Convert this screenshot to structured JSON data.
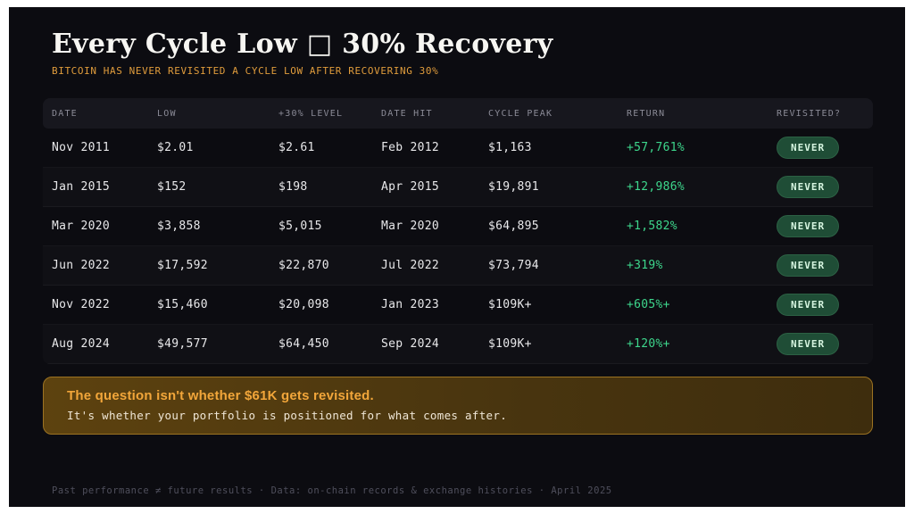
{
  "header": {
    "title": "Every Cycle Low □ 30% Recovery",
    "subtitle": "BITCOIN HAS NEVER REVISITED A CYCLE LOW AFTER RECOVERING 30%"
  },
  "chart_data": {
    "type": "table",
    "title": "Every Cycle Low □ 30% Recovery",
    "subtitle": "BITCOIN HAS NEVER REVISITED A CYCLE LOW AFTER RECOVERING 30%",
    "columns": [
      "DATE",
      "LOW",
      "+30% LEVEL",
      "DATE HIT",
      "CYCLE PEAK",
      "RETURN",
      "REVISITED?"
    ],
    "rows": [
      [
        "Nov 2011",
        "$2.01",
        "$2.61",
        "Feb 2012",
        "$1,163",
        "+57,761%",
        "NEVER"
      ],
      [
        "Jan 2015",
        "$152",
        "$198",
        "Apr 2015",
        "$19,891",
        "+12,986%",
        "NEVER"
      ],
      [
        "Mar 2020",
        "$3,858",
        "$5,015",
        "Mar 2020",
        "$64,895",
        "+1,582%",
        "NEVER"
      ],
      [
        "Jun 2022",
        "$17,592",
        "$22,870",
        "Jul 2022",
        "$73,794",
        "+319%",
        "NEVER"
      ],
      [
        "Nov 2022",
        "$15,460",
        "$20,098",
        "Jan 2023",
        "$109K+",
        "+605%+",
        "NEVER"
      ],
      [
        "Aug 2024",
        "$49,577",
        "$64,450",
        "Sep 2024",
        "$109K+",
        "+120%+",
        "NEVER"
      ]
    ]
  },
  "callout": {
    "headline": "The question isn't whether $61K gets revisited.",
    "body": "It's whether your portfolio is positioned for what comes after."
  },
  "footer": {
    "text": "Past performance ≠ future results  ·  Data: on-chain records & exchange histories  ·  April 2025"
  },
  "colors": {
    "panel_bg": "#0c0c11",
    "accent_orange": "#e09c3c",
    "positive_green": "#3dd68c",
    "badge_bg": "#1f4d36",
    "badge_text": "#d6f5e0",
    "callout_border": "#9c7322"
  }
}
